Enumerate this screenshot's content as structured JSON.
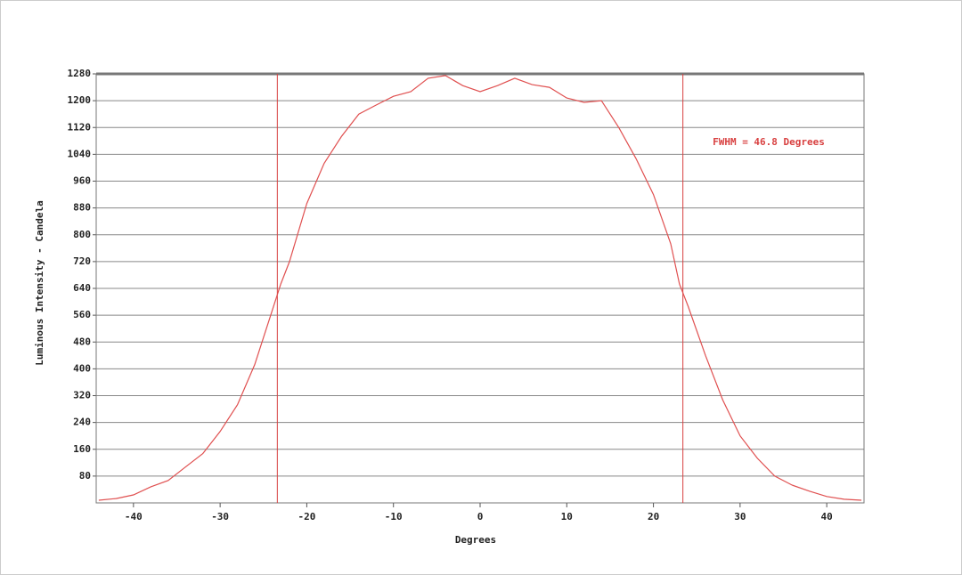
{
  "chart_data": {
    "type": "line",
    "xlabel": "Degrees",
    "ylabel": "Luminous Intensity - Candela",
    "annotation": "FWHM = 46.8 Degrees",
    "x": [
      -44,
      -42,
      -40,
      -38,
      -36,
      -34,
      -32,
      -30,
      -28,
      -26,
      -24,
      -23,
      -22,
      -20,
      -18,
      -16,
      -14,
      -12,
      -10,
      -8,
      -6,
      -4,
      -2,
      0,
      2,
      4,
      6,
      8,
      10,
      12,
      14,
      16,
      18,
      20,
      22,
      23,
      24,
      26,
      28,
      30,
      32,
      34,
      36,
      38,
      40,
      42,
      44
    ],
    "values": [
      8,
      13,
      24,
      48,
      67,
      107,
      147,
      213,
      293,
      413,
      573,
      653,
      720,
      893,
      1013,
      1093,
      1160,
      1187,
      1213,
      1227,
      1267,
      1275,
      1245,
      1227,
      1245,
      1267,
      1248,
      1240,
      1208,
      1195,
      1200,
      1120,
      1027,
      920,
      773,
      653,
      587,
      440,
      307,
      200,
      133,
      80,
      53,
      35,
      19,
      11,
      8
    ],
    "color": "#e05050",
    "vlines": [
      -23.4,
      23.4
    ],
    "vline_color": "#d84040",
    "xlim": [
      -44.3,
      44.3
    ],
    "ylim": [
      0,
      1280
    ],
    "xticks": [
      -40,
      -30,
      -20,
      -10,
      0,
      10,
      20,
      30,
      40
    ],
    "yticks": [
      80,
      160,
      240,
      320,
      400,
      480,
      560,
      640,
      720,
      800,
      880,
      960,
      1040,
      1120,
      1200,
      1280
    ],
    "grid": true
  }
}
